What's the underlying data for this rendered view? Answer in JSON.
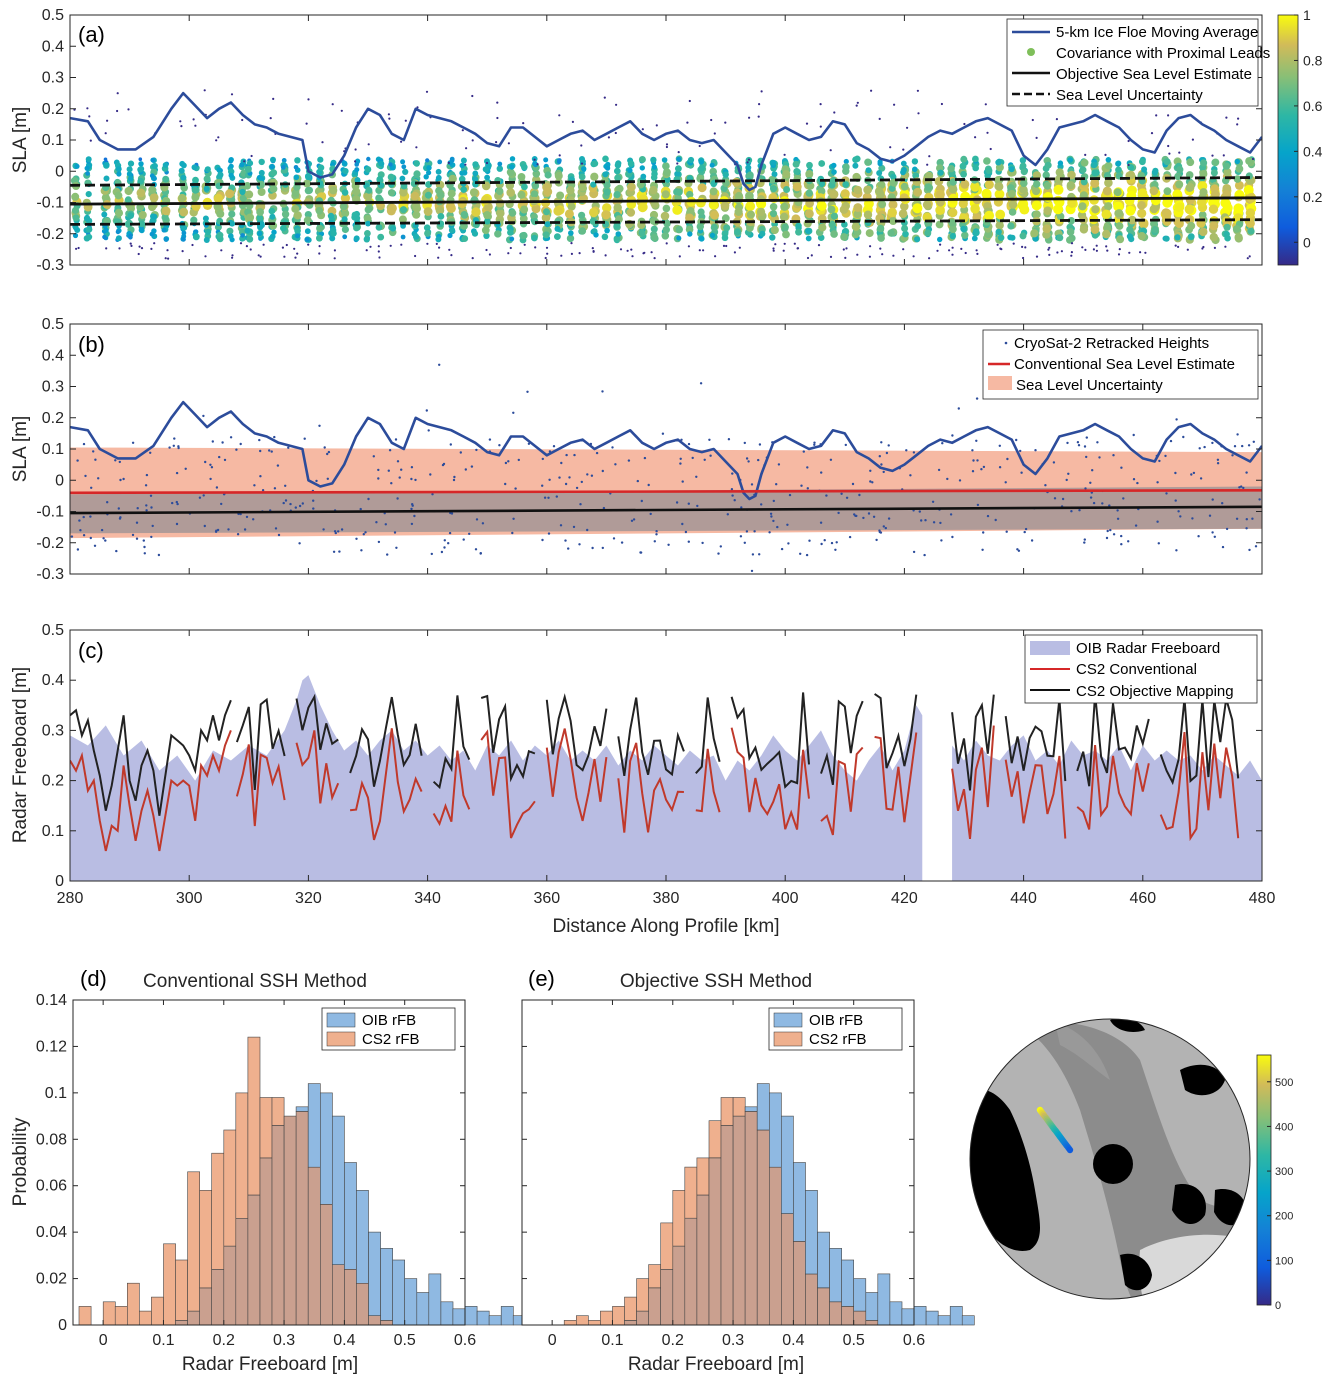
{
  "colors": {
    "moving_avg": "#2c4c9b",
    "conventional": "#d62728",
    "objective": "#111111",
    "oib_fill": "#b9bde3",
    "uncert_fill": "#f6b9a3",
    "overlap_fill": "#b09b98",
    "hist_oib": "#8fb9e2",
    "hist_cs2": "#efb08e",
    "hist_overlap": "#caa08f"
  },
  "chart_data": [
    {
      "id": "a",
      "type": "scatter",
      "panel_label": "(a)",
      "ylabel": "SLA [m]",
      "xlim": [
        280,
        480
      ],
      "ylim": [
        -0.3,
        0.5
      ],
      "yticks": [
        "-0.3",
        "-0.2",
        "-0.1",
        "0",
        "0.1",
        "0.2",
        "0.3",
        "0.4",
        "0.5"
      ],
      "legend": [
        "5-km Ice Floe Moving Average",
        "Covariance with Proximal Leads",
        "Objective Sea Level Estimate",
        "Sea Level Uncertainty"
      ],
      "legend_position": "top-right",
      "colorbar": {
        "min": -0.1,
        "max": 1,
        "ticks": [
          "0",
          "0.2",
          "0.4",
          "0.6",
          "0.8",
          "1"
        ]
      },
      "moving_average": {
        "x": [
          280,
          283,
          285,
          288,
          291,
          294,
          297,
          299,
          301,
          303,
          305,
          307,
          309,
          311,
          313,
          315,
          317,
          319,
          320,
          322,
          324,
          326,
          328,
          330,
          332,
          334,
          336,
          338,
          340,
          342,
          344,
          346,
          348,
          350,
          352,
          354,
          356,
          358,
          360,
          362,
          364,
          366,
          368,
          370,
          372,
          374,
          376,
          378,
          380,
          382,
          384,
          386,
          388,
          390,
          392,
          393,
          394,
          395,
          396,
          398,
          400,
          402,
          404,
          406,
          408,
          410,
          412,
          414,
          416,
          418,
          420,
          422,
          424,
          426,
          428,
          430,
          432,
          434,
          436,
          438,
          440,
          442,
          444,
          446,
          448,
          450,
          452,
          454,
          456,
          458,
          460,
          462,
          464,
          466,
          468,
          470,
          472,
          474,
          476,
          478,
          480
        ],
        "y": [
          0.17,
          0.16,
          0.1,
          0.07,
          0.07,
          0.11,
          0.2,
          0.25,
          0.21,
          0.17,
          0.2,
          0.22,
          0.18,
          0.15,
          0.14,
          0.12,
          0.11,
          0.1,
          0.0,
          -0.02,
          -0.01,
          0.05,
          0.14,
          0.2,
          0.18,
          0.12,
          0.1,
          0.2,
          0.18,
          0.17,
          0.16,
          0.14,
          0.12,
          0.09,
          0.08,
          0.14,
          0.14,
          0.11,
          0.08,
          0.1,
          0.12,
          0.13,
          0.1,
          0.12,
          0.14,
          0.16,
          0.12,
          0.1,
          0.12,
          0.13,
          0.1,
          0.09,
          0.1,
          0.06,
          0.02,
          -0.04,
          -0.06,
          -0.05,
          0.02,
          0.12,
          0.14,
          0.12,
          0.1,
          0.11,
          0.16,
          0.15,
          0.09,
          0.07,
          0.04,
          0.03,
          0.05,
          0.08,
          0.11,
          0.13,
          0.12,
          0.14,
          0.16,
          0.17,
          0.15,
          0.13,
          0.05,
          0.02,
          0.07,
          0.14,
          0.15,
          0.16,
          0.18,
          0.16,
          0.14,
          0.1,
          0.07,
          0.06,
          0.13,
          0.17,
          0.18,
          0.15,
          0.13,
          0.1,
          0.08,
          0.06,
          0.11
        ]
      },
      "objective_estimate": {
        "x": [
          280,
          480
        ],
        "y": [
          -0.105,
          -0.085
        ]
      },
      "uncertainty_upper": {
        "x": [
          280,
          480
        ],
        "y": [
          -0.045,
          -0.02
        ]
      },
      "uncertainty_lower": {
        "x": [
          280,
          480
        ],
        "y": [
          -0.17,
          -0.155
        ]
      },
      "scatter_columns_x": [
        281,
        283,
        286,
        288,
        290,
        292,
        294,
        296,
        299,
        301,
        303,
        305,
        307,
        309,
        310,
        312,
        314,
        316,
        318,
        320,
        322,
        324,
        326,
        328,
        330,
        332,
        334,
        336,
        338,
        340,
        342,
        344,
        346,
        348,
        350,
        352,
        354,
        356,
        358,
        360,
        362,
        364,
        366,
        368,
        370,
        372,
        374,
        376,
        378,
        380,
        382,
        384,
        386,
        388,
        390,
        392,
        394,
        396,
        398,
        400,
        402,
        404,
        406,
        408,
        410,
        412,
        414,
        416,
        418,
        420,
        422,
        424,
        426,
        428,
        430,
        432,
        434,
        436,
        438,
        440,
        442,
        444,
        446,
        448,
        450,
        452,
        454,
        456,
        458,
        460,
        462,
        464,
        466,
        468,
        470,
        472,
        474,
        476,
        478
      ]
    },
    {
      "id": "b",
      "type": "line",
      "panel_label": "(b)",
      "ylabel": "SLA [m]",
      "xlim": [
        280,
        480
      ],
      "ylim": [
        -0.3,
        0.5
      ],
      "yticks": [
        "-0.3",
        "-0.2",
        "-0.1",
        "0",
        "0.1",
        "0.2",
        "0.3",
        "0.4",
        "0.5"
      ],
      "legend": [
        "CryoSat-2 Retracked Heights",
        "Conventional Sea Level Estimate",
        "Sea Level Uncertainty"
      ],
      "legend_position": "top-right",
      "conventional_estimate": {
        "x": [
          280,
          480
        ],
        "y": [
          -0.04,
          -0.032
        ]
      },
      "conventional_band_upper": {
        "x": [
          280,
          480
        ],
        "y": [
          0.105,
          0.09
        ]
      },
      "conventional_band_lower": {
        "x": [
          280,
          480
        ],
        "y": [
          -0.185,
          -0.155
        ]
      },
      "objective_estimate": {
        "x": [
          280,
          480
        ],
        "y": [
          -0.105,
          -0.085
        ]
      },
      "objective_band_upper": {
        "x": [
          280,
          480
        ],
        "y": [
          -0.045,
          -0.02
        ]
      },
      "objective_band_lower": {
        "x": [
          280,
          480
        ],
        "y": [
          -0.17,
          -0.155
        ]
      }
    },
    {
      "id": "c",
      "type": "area",
      "panel_label": "(c)",
      "ylabel": "Radar Freeboard [m]",
      "xlabel": "Distance Along Profile [km]",
      "xlim": [
        280,
        480
      ],
      "ylim": [
        0,
        0.5
      ],
      "xticks": [
        "280",
        "300",
        "320",
        "340",
        "360",
        "380",
        "400",
        "420",
        "440",
        "460",
        "480"
      ],
      "yticks": [
        "0",
        "0.1",
        "0.2",
        "0.3",
        "0.4",
        "0.5"
      ],
      "legend": [
        "OIB Radar Freeboard",
        "CS2 Conventional",
        "CS2 Objective Mapping"
      ],
      "legend_position": "top-right",
      "oib": {
        "x": [
          280,
          283,
          286,
          289,
          292,
          295,
          298,
          301,
          304,
          307,
          310,
          313,
          316,
          318,
          319,
          320,
          322,
          324,
          326,
          328,
          330,
          332,
          334,
          336,
          338,
          340,
          342,
          344,
          346,
          348,
          350,
          352,
          354,
          356,
          358,
          360,
          362,
          364,
          366,
          368,
          370,
          372,
          374,
          376,
          378,
          380,
          382,
          384,
          386,
          388,
          390,
          392,
          394,
          396,
          398,
          400,
          402,
          404,
          406,
          408,
          410,
          412,
          414,
          416,
          418,
          420,
          422,
          423
        ],
        "y": [
          0.29,
          0.27,
          0.31,
          0.25,
          0.28,
          0.22,
          0.25,
          0.2,
          0.26,
          0.24,
          0.27,
          0.25,
          0.3,
          0.36,
          0.4,
          0.41,
          0.35,
          0.3,
          0.26,
          0.28,
          0.25,
          0.28,
          0.3,
          0.26,
          0.28,
          0.25,
          0.27,
          0.24,
          0.26,
          0.22,
          0.27,
          0.25,
          0.28,
          0.24,
          0.27,
          0.25,
          0.28,
          0.24,
          0.26,
          0.24,
          0.27,
          0.23,
          0.26,
          0.24,
          0.27,
          0.25,
          0.23,
          0.26,
          0.24,
          0.25,
          0.2,
          0.24,
          0.22,
          0.25,
          0.29,
          0.26,
          0.24,
          0.27,
          0.3,
          0.25,
          0.22,
          0.2,
          0.24,
          0.27,
          0.22,
          0.26,
          0.35,
          0.33
        ]
      },
      "oib_segment2": {
        "x": [
          428,
          430,
          432,
          434,
          436,
          438,
          440,
          442,
          444,
          446,
          448,
          450,
          452,
          454,
          456,
          458,
          460,
          462,
          464,
          466,
          468,
          470,
          472,
          474,
          476,
          478,
          480
        ],
        "y": [
          0.27,
          0.24,
          0.28,
          0.25,
          0.24,
          0.27,
          0.29,
          0.24,
          0.26,
          0.23,
          0.28,
          0.25,
          0.26,
          0.24,
          0.27,
          0.22,
          0.27,
          0.24,
          0.26,
          0.24,
          0.25,
          0.22,
          0.25,
          0.23,
          0.21,
          0.24,
          0.2
        ]
      },
      "cs2_conventional": {
        "x": [
          280,
          281,
          282,
          283,
          284,
          285,
          286,
          287,
          288,
          289,
          290,
          291,
          292,
          293,
          294,
          295,
          297,
          298,
          299,
          300,
          301,
          302,
          303,
          304,
          305,
          306,
          307
        ],
        "y": [
          0.24,
          0.22,
          0.25,
          0.18,
          0.2,
          0.12,
          0.06,
          0.11,
          0.1,
          0.23,
          0.15,
          0.08,
          0.14,
          0.18,
          0.13,
          0.06,
          0.2,
          0.19,
          0.2,
          0.19,
          0.12,
          0.23,
          0.21,
          0.25,
          0.22,
          0.27,
          0.3
        ]
      },
      "cs2_objective": {
        "x": [
          280,
          281,
          282,
          283,
          284,
          285,
          286,
          287,
          288,
          289,
          290,
          291,
          292,
          293,
          294,
          295,
          297,
          298,
          299,
          300,
          301,
          302,
          303,
          304,
          305,
          306,
          307
        ],
        "y": [
          0.33,
          0.34,
          0.29,
          0.32,
          0.26,
          0.21,
          0.14,
          0.19,
          0.26,
          0.33,
          0.2,
          0.16,
          0.23,
          0.26,
          0.22,
          0.13,
          0.29,
          0.28,
          0.27,
          0.25,
          0.22,
          0.3,
          0.28,
          0.33,
          0.28,
          0.33,
          0.36
        ]
      }
    },
    {
      "id": "d",
      "type": "bar",
      "panel_label": "(d)",
      "title": "Conventional SSH Method",
      "xlabel": "Radar Freeboard [m]",
      "ylabel": "Probability",
      "xlim": [
        -0.05,
        0.6
      ],
      "ylim": [
        0,
        0.14
      ],
      "xticks": [
        "0",
        "0.1",
        "0.2",
        "0.3",
        "0.4",
        "0.5",
        "0.6"
      ],
      "yticks": [
        "0",
        "0.02",
        "0.04",
        "0.06",
        "0.08",
        "0.1",
        "0.12",
        "0.14"
      ],
      "legend": [
        "OIB rFB",
        "CS2 rFB"
      ],
      "legend_position": "top-right",
      "bin_start": -0.04,
      "bin_width": 0.02,
      "series": [
        {
          "name": "OIB rFB",
          "values": [
            0,
            0,
            0,
            0,
            0,
            0,
            0,
            0,
            0.002,
            0.006,
            0.016,
            0.024,
            0.034,
            0.046,
            0.056,
            0.072,
            0.086,
            0.09,
            0.094,
            0.104,
            0.1,
            0.09,
            0.07,
            0.058,
            0.04,
            0.033,
            0.028,
            0.02,
            0.014,
            0.022,
            0.01,
            0.007,
            0.008,
            0.006,
            0.004,
            0.008,
            0.004
          ]
        },
        {
          "name": "CS2 rFB",
          "values": [
            0.008,
            0,
            0.01,
            0.008,
            0.018,
            0.006,
            0.012,
            0.035,
            0.028,
            0.066,
            0.058,
            0.074,
            0.084,
            0.1,
            0.124,
            0.098,
            0.098,
            0.09,
            0.092,
            0.068,
            0.052,
            0.026,
            0.024,
            0.018,
            0.004,
            0.002,
            0,
            0,
            0,
            0,
            0,
            0,
            0,
            0,
            0,
            0,
            0
          ]
        }
      ]
    },
    {
      "id": "e",
      "type": "bar",
      "panel_label": "(e)",
      "title": "Objective SSH Method",
      "xlabel": "Radar Freeboard [m]",
      "xlim": [
        -0.05,
        0.6
      ],
      "ylim": [
        0,
        0.14
      ],
      "xticks": [
        "0",
        "0.1",
        "0.2",
        "0.3",
        "0.4",
        "0.5",
        "0.6"
      ],
      "legend": [
        "OIB rFB",
        "CS2 rFB"
      ],
      "legend_position": "top-right",
      "bin_start": -0.04,
      "bin_width": 0.02,
      "series": [
        {
          "name": "OIB rFB",
          "values": [
            0,
            0,
            0,
            0,
            0,
            0,
            0,
            0,
            0.002,
            0.006,
            0.016,
            0.024,
            0.034,
            0.046,
            0.056,
            0.072,
            0.086,
            0.09,
            0.094,
            0.104,
            0.1,
            0.09,
            0.07,
            0.058,
            0.04,
            0.033,
            0.028,
            0.02,
            0.014,
            0.022,
            0.01,
            0.007,
            0.008,
            0.006,
            0.004,
            0.008,
            0.004
          ]
        },
        {
          "name": "CS2 rFB",
          "values": [
            0,
            0,
            0,
            0.002,
            0.004,
            0.002,
            0.006,
            0.008,
            0.012,
            0.02,
            0.026,
            0.044,
            0.058,
            0.068,
            0.072,
            0.088,
            0.098,
            0.098,
            0.092,
            0.084,
            0.068,
            0.048,
            0.036,
            0.022,
            0.016,
            0.01,
            0.008,
            0.006,
            0.002,
            0,
            0,
            0,
            0,
            0,
            0,
            0,
            0
          ]
        }
      ]
    },
    {
      "id": "map",
      "type": "scatter",
      "colorbar": {
        "min": 0,
        "max": 560,
        "ticks": [
          "0",
          "100",
          "200",
          "300",
          "400",
          "500"
        ]
      }
    }
  ]
}
